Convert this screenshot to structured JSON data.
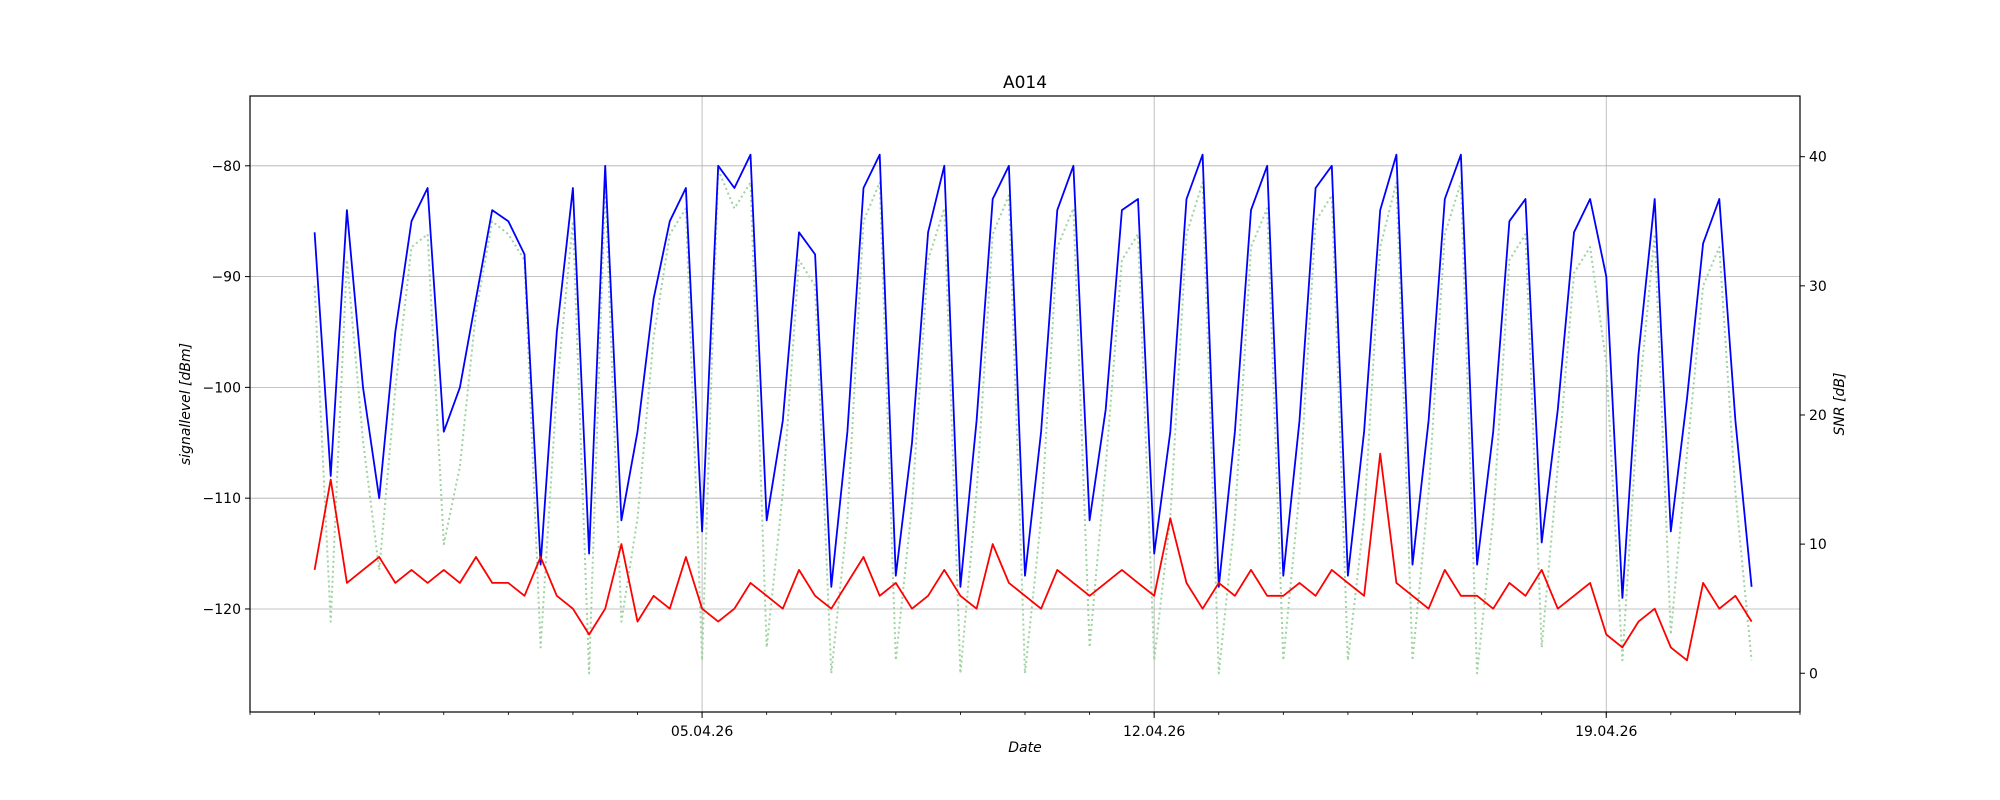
{
  "chart_data": {
    "type": "line",
    "title": "A014",
    "xlabel": "Date",
    "ylabel_left": "signallevel [dBm]",
    "ylabel_right": "SNR [dB]",
    "xlim": [
      "2026-03-29T00:00",
      "2026-04-22T00:00"
    ],
    "ylim_left": [
      -129.3,
      -73.7
    ],
    "ylim_right": [
      -3,
      44.7
    ],
    "x_ticks": [
      {
        "date": "2026-04-05",
        "label": "05.04.26"
      },
      {
        "date": "2026-04-12",
        "label": "12.04.26"
      },
      {
        "date": "2026-04-19",
        "label": "19.04.26"
      }
    ],
    "y_ticks_left": [
      {
        "value": -80,
        "label": "−80"
      },
      {
        "value": -90,
        "label": "−90"
      },
      {
        "value": -100,
        "label": "−100"
      },
      {
        "value": -110,
        "label": "−110"
      },
      {
        "value": -120,
        "label": "−120"
      }
    ],
    "y_ticks_right": [
      {
        "value": 40,
        "label": "40"
      },
      {
        "value": 30,
        "label": "30"
      },
      {
        "value": 20,
        "label": "20"
      },
      {
        "value": 10,
        "label": "10"
      },
      {
        "value": 0,
        "label": "0"
      }
    ],
    "grid": true,
    "legend": "none",
    "series": [
      {
        "color": "#0000ff",
        "style": "solid",
        "axis": "left",
        "x": [
          "2026-03-30T00:00",
          "2026-03-30T06:00",
          "2026-03-30T12:00",
          "2026-03-30T18:00",
          "2026-03-31T00:00",
          "2026-03-31T06:00",
          "2026-03-31T12:00",
          "2026-03-31T18:00",
          "2026-04-01T00:00",
          "2026-04-01T06:00",
          "2026-04-01T12:00",
          "2026-04-01T18:00",
          "2026-04-02T00:00",
          "2026-04-02T06:00",
          "2026-04-02T12:00",
          "2026-04-02T18:00",
          "2026-04-03T00:00",
          "2026-04-03T06:00",
          "2026-04-03T12:00",
          "2026-04-03T18:00",
          "2026-04-04T00:00",
          "2026-04-04T06:00",
          "2026-04-04T12:00",
          "2026-04-04T18:00",
          "2026-04-05T00:00",
          "2026-04-05T06:00",
          "2026-04-05T12:00",
          "2026-04-05T18:00",
          "2026-04-06T00:00",
          "2026-04-06T06:00",
          "2026-04-06T12:00",
          "2026-04-06T18:00",
          "2026-04-07T00:00",
          "2026-04-07T06:00",
          "2026-04-07T12:00",
          "2026-04-07T18:00",
          "2026-04-08T00:00",
          "2026-04-08T06:00",
          "2026-04-08T12:00",
          "2026-04-08T18:00",
          "2026-04-09T00:00",
          "2026-04-09T06:00",
          "2026-04-09T12:00",
          "2026-04-09T18:00",
          "2026-04-10T00:00",
          "2026-04-10T06:00",
          "2026-04-10T12:00",
          "2026-04-10T18:00",
          "2026-04-11T00:00",
          "2026-04-11T06:00",
          "2026-04-11T12:00",
          "2026-04-11T18:00",
          "2026-04-12T00:00",
          "2026-04-12T06:00",
          "2026-04-12T12:00",
          "2026-04-12T18:00",
          "2026-04-13T00:00",
          "2026-04-13T06:00",
          "2026-04-13T12:00",
          "2026-04-13T18:00",
          "2026-04-14T00:00",
          "2026-04-14T06:00",
          "2026-04-14T12:00",
          "2026-04-14T18:00",
          "2026-04-15T00:00",
          "2026-04-15T06:00",
          "2026-04-15T12:00",
          "2026-04-15T18:00",
          "2026-04-16T00:00",
          "2026-04-16T06:00",
          "2026-04-16T12:00",
          "2026-04-16T18:00",
          "2026-04-17T00:00",
          "2026-04-17T06:00",
          "2026-04-17T12:00",
          "2026-04-17T18:00",
          "2026-04-18T00:00",
          "2026-04-18T06:00",
          "2026-04-18T12:00",
          "2026-04-18T18:00",
          "2026-04-19T00:00",
          "2026-04-19T06:00",
          "2026-04-19T12:00",
          "2026-04-19T18:00",
          "2026-04-20T00:00",
          "2026-04-20T06:00",
          "2026-04-20T12:00",
          "2026-04-20T18:00",
          "2026-04-21T00:00",
          "2026-04-21T06:00"
        ],
        "values": [
          -86,
          -108,
          -84,
          -100,
          -110,
          -95,
          -85,
          -82,
          -104,
          -100,
          -92,
          -84,
          -85,
          -88,
          -116,
          -95,
          -82,
          -115,
          -80,
          -112,
          -104,
          -92,
          -85,
          -82,
          -113,
          -80,
          -82,
          -79,
          -112,
          -103,
          -86,
          -88,
          -118,
          -104,
          -82,
          -79,
          -117,
          -105,
          -86,
          -80,
          -118,
          -103,
          -83,
          -80,
          -117,
          -104,
          -84,
          -80,
          -112,
          -102,
          -84,
          -83,
          -115,
          -104,
          -83,
          -79,
          -118,
          -104,
          -84,
          -80,
          -117,
          -103,
          -82,
          -80,
          -117,
          -104,
          -84,
          -79,
          -116,
          -103,
          -83,
          -79,
          -116,
          -104,
          -85,
          -83,
          -114,
          -102,
          -86,
          -83,
          -90,
          -119,
          -97,
          -83,
          -113,
          -101,
          -87,
          -83,
          -103,
          -118
        ]
      },
      {
        "color": "#ff0000",
        "style": "solid",
        "axis": "right",
        "x": [
          "2026-03-30T00:00",
          "2026-03-30T06:00",
          "2026-03-30T12:00",
          "2026-03-30T18:00",
          "2026-03-31T00:00",
          "2026-03-31T06:00",
          "2026-03-31T12:00",
          "2026-03-31T18:00",
          "2026-04-01T00:00",
          "2026-04-01T06:00",
          "2026-04-01T12:00",
          "2026-04-01T18:00",
          "2026-04-02T00:00",
          "2026-04-02T06:00",
          "2026-04-02T12:00",
          "2026-04-02T18:00",
          "2026-04-03T00:00",
          "2026-04-03T06:00",
          "2026-04-03T12:00",
          "2026-04-03T18:00",
          "2026-04-04T00:00",
          "2026-04-04T06:00",
          "2026-04-04T12:00",
          "2026-04-04T18:00",
          "2026-04-05T00:00",
          "2026-04-05T06:00",
          "2026-04-05T12:00",
          "2026-04-05T18:00",
          "2026-04-06T00:00",
          "2026-04-06T06:00",
          "2026-04-06T12:00",
          "2026-04-06T18:00",
          "2026-04-07T00:00",
          "2026-04-07T06:00",
          "2026-04-07T12:00",
          "2026-04-07T18:00",
          "2026-04-08T00:00",
          "2026-04-08T06:00",
          "2026-04-08T12:00",
          "2026-04-08T18:00",
          "2026-04-09T00:00",
          "2026-04-09T06:00",
          "2026-04-09T12:00",
          "2026-04-09T18:00",
          "2026-04-10T00:00",
          "2026-04-10T06:00",
          "2026-04-10T12:00",
          "2026-04-10T18:00",
          "2026-04-11T00:00",
          "2026-04-11T06:00",
          "2026-04-11T12:00",
          "2026-04-11T18:00",
          "2026-04-12T00:00",
          "2026-04-12T06:00",
          "2026-04-12T12:00",
          "2026-04-12T18:00",
          "2026-04-13T00:00",
          "2026-04-13T06:00",
          "2026-04-13T12:00",
          "2026-04-13T18:00",
          "2026-04-14T00:00",
          "2026-04-14T06:00",
          "2026-04-14T12:00",
          "2026-04-14T18:00",
          "2026-04-15T00:00",
          "2026-04-15T06:00",
          "2026-04-15T12:00",
          "2026-04-15T18:00",
          "2026-04-16T00:00",
          "2026-04-16T06:00",
          "2026-04-16T12:00",
          "2026-04-16T18:00",
          "2026-04-17T00:00",
          "2026-04-17T06:00",
          "2026-04-17T12:00",
          "2026-04-17T18:00",
          "2026-04-18T00:00",
          "2026-04-18T06:00",
          "2026-04-18T12:00",
          "2026-04-18T18:00",
          "2026-04-19T00:00",
          "2026-04-19T06:00",
          "2026-04-19T12:00",
          "2026-04-19T18:00",
          "2026-04-20T00:00",
          "2026-04-20T06:00",
          "2026-04-20T12:00",
          "2026-04-20T18:00",
          "2026-04-21T00:00",
          "2026-04-21T06:00"
        ],
        "values": [
          8,
          15,
          7,
          8,
          9,
          7,
          8,
          7,
          8,
          7,
          9,
          7,
          7,
          6,
          9,
          6,
          5,
          3,
          5,
          10,
          4,
          6,
          5,
          9,
          5,
          4,
          5,
          7,
          6,
          5,
          8,
          6,
          5,
          7,
          9,
          6,
          7,
          5,
          6,
          8,
          6,
          5,
          10,
          7,
          6,
          5,
          8,
          7,
          6,
          7,
          8,
          7,
          6,
          12,
          7,
          5,
          7,
          6,
          8,
          6,
          6,
          7,
          6,
          8,
          7,
          6,
          17,
          7,
          6,
          5,
          8,
          6,
          6,
          5,
          7,
          6,
          8,
          5,
          6,
          7,
          3,
          2,
          4,
          5,
          2,
          1,
          7,
          5,
          6,
          4
        ]
      },
      {
        "color": "#9fd39f",
        "style": "dotted",
        "axis": "right",
        "x": [
          "2026-03-30T00:00",
          "2026-03-30T06:00",
          "2026-03-30T12:00",
          "2026-03-30T18:00",
          "2026-03-31T00:00",
          "2026-03-31T06:00",
          "2026-03-31T12:00",
          "2026-03-31T18:00",
          "2026-04-01T00:00",
          "2026-04-01T06:00",
          "2026-04-01T12:00",
          "2026-04-01T18:00",
          "2026-04-02T00:00",
          "2026-04-02T06:00",
          "2026-04-02T12:00",
          "2026-04-02T18:00",
          "2026-04-03T00:00",
          "2026-04-03T06:00",
          "2026-04-03T12:00",
          "2026-04-03T18:00",
          "2026-04-04T00:00",
          "2026-04-04T06:00",
          "2026-04-04T12:00",
          "2026-04-04T18:00",
          "2026-04-05T00:00",
          "2026-04-05T06:00",
          "2026-04-05T12:00",
          "2026-04-05T18:00",
          "2026-04-06T00:00",
          "2026-04-06T06:00",
          "2026-04-06T12:00",
          "2026-04-06T18:00",
          "2026-04-07T00:00",
          "2026-04-07T06:00",
          "2026-04-07T12:00",
          "2026-04-07T18:00",
          "2026-04-08T00:00",
          "2026-04-08T06:00",
          "2026-04-08T12:00",
          "2026-04-08T18:00",
          "2026-04-09T00:00",
          "2026-04-09T06:00",
          "2026-04-09T12:00",
          "2026-04-09T18:00",
          "2026-04-10T00:00",
          "2026-04-10T06:00",
          "2026-04-10T12:00",
          "2026-04-10T18:00",
          "2026-04-11T00:00",
          "2026-04-11T06:00",
          "2026-04-11T12:00",
          "2026-04-11T18:00",
          "2026-04-12T00:00",
          "2026-04-12T06:00",
          "2026-04-12T12:00",
          "2026-04-12T18:00",
          "2026-04-13T00:00",
          "2026-04-13T06:00",
          "2026-04-13T12:00",
          "2026-04-13T18:00",
          "2026-04-14T00:00",
          "2026-04-14T06:00",
          "2026-04-14T12:00",
          "2026-04-14T18:00",
          "2026-04-15T00:00",
          "2026-04-15T06:00",
          "2026-04-15T12:00",
          "2026-04-15T18:00",
          "2026-04-16T00:00",
          "2026-04-16T06:00",
          "2026-04-16T12:00",
          "2026-04-16T18:00",
          "2026-04-17T00:00",
          "2026-04-17T06:00",
          "2026-04-17T12:00",
          "2026-04-17T18:00",
          "2026-04-18T00:00",
          "2026-04-18T06:00",
          "2026-04-18T12:00",
          "2026-04-18T18:00",
          "2026-04-19T00:00",
          "2026-04-19T06:00",
          "2026-04-19T12:00",
          "2026-04-19T18:00",
          "2026-04-20T00:00",
          "2026-04-20T06:00",
          "2026-04-20T12:00",
          "2026-04-20T18:00",
          "2026-04-21T00:00",
          "2026-04-21T06:00"
        ],
        "values": [
          30,
          4,
          32,
          18,
          8,
          22,
          33,
          34,
          10,
          16,
          28,
          35,
          34,
          32,
          2,
          22,
          35,
          0,
          38,
          4,
          12,
          26,
          34,
          36,
          1,
          39,
          36,
          38,
          2,
          14,
          32,
          30,
          0,
          12,
          35,
          38,
          1,
          13,
          32,
          36,
          0,
          14,
          34,
          37,
          0,
          12,
          33,
          36,
          2,
          16,
          32,
          34,
          1,
          12,
          34,
          38,
          0,
          12,
          33,
          36,
          1,
          14,
          35,
          37,
          1,
          12,
          33,
          38,
          1,
          14,
          34,
          38,
          0,
          12,
          32,
          34,
          2,
          16,
          31,
          33,
          24,
          1,
          21,
          34,
          3,
          17,
          30,
          33,
          14,
          1
        ]
      }
    ]
  }
}
